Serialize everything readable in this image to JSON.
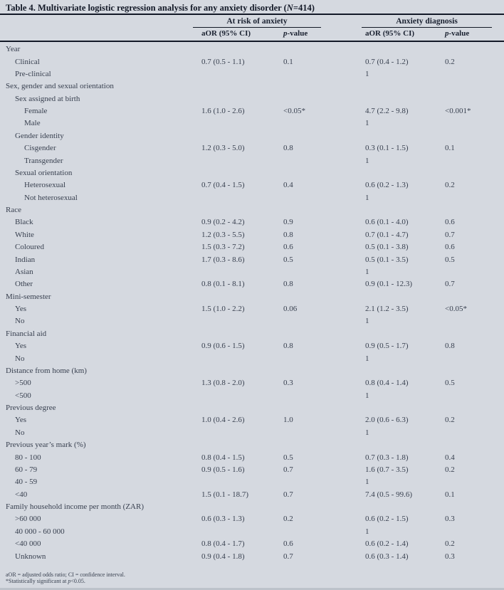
{
  "title": {
    "part1": "Table 4. Multivariate logistic regression analysis for any anxiety disorder (",
    "n_symbol": "N",
    "part2": "=414)"
  },
  "colors": {
    "background": "#d5d9e0",
    "body_text": "#394150",
    "heading_text": "#131927",
    "rule": "#131927",
    "bottom_edge": "#bcc2ca"
  },
  "table": {
    "groups": [
      {
        "label": "At risk of anxiety"
      },
      {
        "label": "Anxiety diagnosis"
      }
    ],
    "columns": {
      "aor": "aOR (95% CI)",
      "p_italic": "p",
      "p_rest": "-value"
    },
    "rows": [
      {
        "label": "Year",
        "indent": 0,
        "cells": [
          "",
          "",
          "",
          ""
        ]
      },
      {
        "label": "Clinical",
        "indent": 1,
        "cells": [
          "0.7 (0.5 - 1.1)",
          "0.1",
          "0.7 (0.4 - 1.2)",
          "0.2"
        ]
      },
      {
        "label": "Pre-clinical",
        "indent": 1,
        "cells": [
          "",
          "",
          "1",
          ""
        ]
      },
      {
        "label": "Sex, gender and sexual orientation",
        "indent": 0,
        "cells": [
          "",
          "",
          "",
          ""
        ]
      },
      {
        "label": "Sex assigned at birth",
        "indent": 1,
        "cells": [
          "",
          "",
          "",
          ""
        ]
      },
      {
        "label": "Female",
        "indent": 2,
        "cells": [
          "1.6 (1.0 - 2.6)",
          "<0.05*",
          "4.7 (2.2 - 9.8)",
          "<0.001*"
        ]
      },
      {
        "label": "Male",
        "indent": 2,
        "cells": [
          "",
          "",
          "1",
          ""
        ]
      },
      {
        "label": "Gender identity",
        "indent": 1,
        "cells": [
          "",
          "",
          "",
          ""
        ]
      },
      {
        "label": "Cisgender",
        "indent": 2,
        "cells": [
          "1.2 (0.3 - 5.0)",
          "0.8",
          "0.3 (0.1 - 1.5)",
          "0.1"
        ]
      },
      {
        "label": "Transgender",
        "indent": 2,
        "cells": [
          "",
          "",
          "1",
          ""
        ]
      },
      {
        "label": "Sexual orientation",
        "indent": 1,
        "cells": [
          "",
          "",
          "",
          ""
        ]
      },
      {
        "label": "Heterosexual",
        "indent": 2,
        "cells": [
          "0.7 (0.4 - 1.5)",
          "0.4",
          "0.6 (0.2 - 1.3)",
          "0.2"
        ]
      },
      {
        "label": "Not heterosexual",
        "indent": 2,
        "cells": [
          "",
          "",
          "1",
          ""
        ]
      },
      {
        "label": "Race",
        "indent": 0,
        "cells": [
          "",
          "",
          "",
          ""
        ]
      },
      {
        "label": "Black",
        "indent": 1,
        "cells": [
          "0.9 (0.2 - 4.2)",
          "0.9",
          "0.6 (0.1 - 4.0)",
          "0.6"
        ]
      },
      {
        "label": "White",
        "indent": 1,
        "cells": [
          "1.2 (0.3 - 5.5)",
          "0.8",
          "0.7 (0.1 - 4.7)",
          "0.7"
        ]
      },
      {
        "label": "Coloured",
        "indent": 1,
        "cells": [
          "1.5 (0.3 - 7.2)",
          "0.6",
          "0.5 (0.1 - 3.8)",
          "0.6"
        ]
      },
      {
        "label": "Indian",
        "indent": 1,
        "cells": [
          "1.7 (0.3 - 8.6)",
          "0.5",
          "0.5 (0.1 - 3.5)",
          "0.5"
        ]
      },
      {
        "label": "Asian",
        "indent": 1,
        "cells": [
          "",
          "",
          "1",
          ""
        ]
      },
      {
        "label": "Other",
        "indent": 1,
        "cells": [
          "0.8 (0.1 - 8.1)",
          "0.8",
          "0.9 (0.1 - 12.3)",
          "0.7"
        ]
      },
      {
        "label": "Mini-semester",
        "indent": 0,
        "cells": [
          "",
          "",
          "",
          ""
        ]
      },
      {
        "label": "Yes",
        "indent": 1,
        "cells": [
          "1.5 (1.0 - 2.2)",
          "0.06",
          "2.1 (1.2 - 3.5)",
          "<0.05*"
        ]
      },
      {
        "label": "No",
        "indent": 1,
        "cells": [
          "",
          "",
          "1",
          ""
        ]
      },
      {
        "label": "Financial aid",
        "indent": 0,
        "cells": [
          "",
          "",
          "",
          ""
        ]
      },
      {
        "label": "Yes",
        "indent": 1,
        "cells": [
          "0.9 (0.6 - 1.5)",
          "0.8",
          "0.9 (0.5 - 1.7)",
          "0.8"
        ]
      },
      {
        "label": "No",
        "indent": 1,
        "cells": [
          "",
          "",
          "1",
          ""
        ]
      },
      {
        "label": "Distance from home (km)",
        "indent": 0,
        "cells": [
          "",
          "",
          "",
          ""
        ]
      },
      {
        "label": ">500",
        "indent": 1,
        "cells": [
          "1.3 (0.8 - 2.0)",
          "0.3",
          "0.8 (0.4 - 1.4)",
          "0.5"
        ]
      },
      {
        "label": "<500",
        "indent": 1,
        "cells": [
          "",
          "",
          "1",
          ""
        ]
      },
      {
        "label": "Previous degree",
        "indent": 0,
        "cells": [
          "",
          "",
          "",
          ""
        ]
      },
      {
        "label": "Yes",
        "indent": 1,
        "cells": [
          "1.0 (0.4 - 2.6)",
          "1.0",
          "2.0 (0.6 - 6.3)",
          "0.2"
        ]
      },
      {
        "label": "No",
        "indent": 1,
        "cells": [
          "",
          "",
          "1",
          ""
        ]
      },
      {
        "label": "Previous year’s mark (%)",
        "indent": 0,
        "cells": [
          "",
          "",
          "",
          ""
        ]
      },
      {
        "label": "80 - 100",
        "indent": 1,
        "cells": [
          "0.8 (0.4 - 1.5)",
          "0.5",
          "0.7 (0.3 - 1.8)",
          "0.4"
        ]
      },
      {
        "label": "60 - 79",
        "indent": 1,
        "cells": [
          "0.9 (0.5 - 1.6)",
          "0.7",
          "1.6 (0.7 - 3.5)",
          "0.2"
        ]
      },
      {
        "label": "40 - 59",
        "indent": 1,
        "cells": [
          "",
          "",
          "1",
          ""
        ]
      },
      {
        "label": "<40",
        "indent": 1,
        "cells": [
          "1.5 (0.1 - 18.7)",
          "0.7",
          "7.4 (0.5 - 99.6)",
          "0.1"
        ]
      },
      {
        "label": "Family household income per month (ZAR)",
        "indent": 0,
        "cells": [
          "",
          "",
          "",
          ""
        ]
      },
      {
        "label": ">60 000",
        "indent": 1,
        "cells": [
          "0.6 (0.3 - 1.3)",
          "0.2",
          "0.6 (0.2 - 1.5)",
          "0.3"
        ]
      },
      {
        "label": "40 000 - 60 000",
        "indent": 1,
        "cells": [
          "",
          "",
          "1",
          ""
        ]
      },
      {
        "label": "<40 000",
        "indent": 1,
        "cells": [
          "0.8 (0.4 - 1.7)",
          "0.6",
          "0.6 (0.2 - 1.4)",
          "0.2"
        ]
      },
      {
        "label": "Unknown",
        "indent": 1,
        "cells": [
          "0.9 (0.4 - 1.8)",
          "0.7",
          "0.6 (0.3 - 1.4)",
          "0.3"
        ]
      }
    ]
  },
  "footnotes": {
    "abbreviations": "aOR = adjusted odds ratio; CI = confidence interval.",
    "significance_pre": "*Statistically significant at ",
    "significance_p": "p",
    "significance_post": "<0.05."
  }
}
